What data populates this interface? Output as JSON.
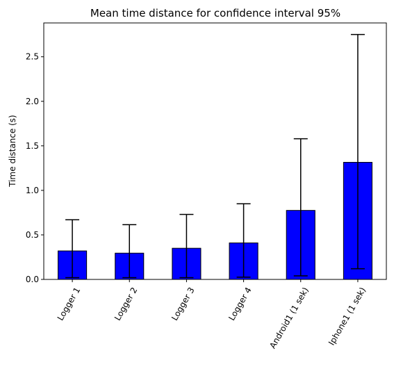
{
  "chart_data": {
    "type": "bar",
    "title": "Mean time distance for confidence interval 95%",
    "xlabel": "",
    "ylabel": "Time distance (s)",
    "categories": [
      "Logger 1",
      "Logger 2",
      "Logger 3",
      "Logger 4",
      "Android1 (1 sek)",
      "Iphone1 (1 sek)"
    ],
    "values": [
      0.32,
      0.295,
      0.35,
      0.41,
      0.775,
      1.315
    ],
    "error_low": [
      0.02,
      0.02,
      0.02,
      0.025,
      0.04,
      0.12
    ],
    "error_high": [
      0.67,
      0.615,
      0.73,
      0.85,
      1.58,
      2.75
    ],
    "ylim": [
      0,
      2.88
    ],
    "yticks": [
      "0.0",
      "0.5",
      "1.0",
      "1.5",
      "2.0",
      "2.5"
    ],
    "grid": false,
    "bar_color": "#0000ff",
    "edge_color": "#000000"
  }
}
